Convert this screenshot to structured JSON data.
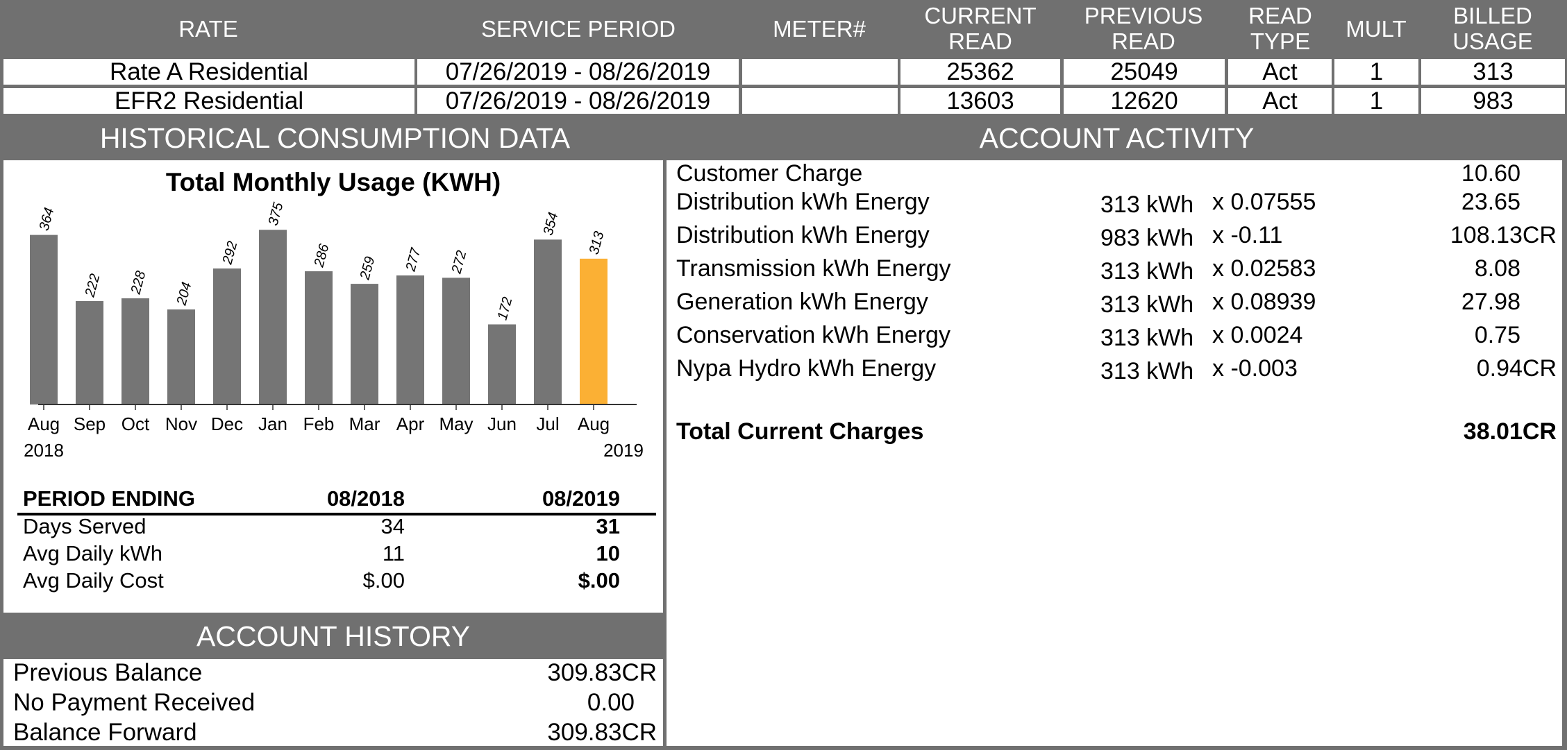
{
  "rate_table": {
    "headers": {
      "rate": "RATE",
      "service_period": "SERVICE PERIOD",
      "meter": "METER#",
      "current_read": [
        "CURRENT",
        "READ"
      ],
      "previous_read": [
        "PREVIOUS",
        "READ"
      ],
      "read_type": [
        "READ",
        "TYPE"
      ],
      "mult": "MULT",
      "billed_usage": [
        "BILLED",
        "USAGE"
      ]
    },
    "rows": [
      {
        "rate": "Rate A Residential",
        "service_period": "07/26/2019 - 08/26/2019",
        "meter": "",
        "current_read": "25362",
        "previous_read": "25049",
        "read_type": "Act",
        "mult": "1",
        "billed_usage": "313"
      },
      {
        "rate": "EFR2 Residential",
        "service_period": "07/26/2019 - 08/26/2019",
        "meter": "",
        "current_read": "13603",
        "previous_read": "12620",
        "read_type": "Act",
        "mult": "1",
        "billed_usage": "983"
      }
    ]
  },
  "historical": {
    "section_title": "HISTORICAL CONSUMPTION DATA",
    "year_start": "2018",
    "year_end": "2019",
    "period_table": {
      "header": {
        "label": "PERIOD ENDING",
        "col1": "08/2018",
        "col2": "08/2019"
      },
      "rows": [
        {
          "label": "Days Served",
          "col1": "34",
          "col2": "31"
        },
        {
          "label": "Avg Daily kWh",
          "col1": "11",
          "col2": "10"
        },
        {
          "label": "Avg Daily Cost",
          "col1": "$.00",
          "col2": "$.00"
        }
      ]
    }
  },
  "chart_data": {
    "type": "bar",
    "title": "Total Monthly Usage (KWH)",
    "categories": [
      "Aug",
      "Sep",
      "Oct",
      "Nov",
      "Dec",
      "Jan",
      "Feb",
      "Mar",
      "Apr",
      "May",
      "Jun",
      "Jul",
      "Aug"
    ],
    "values": [
      364,
      222,
      228,
      204,
      292,
      375,
      286,
      259,
      277,
      272,
      172,
      354,
      313
    ],
    "highlight_index": 12,
    "colors": {
      "bar": "#757575",
      "highlight": "#FBB034"
    },
    "ylim": [
      0,
      420
    ],
    "grid": false
  },
  "account_activity": {
    "section_title": "ACCOUNT ACTIVITY",
    "rows": [
      {
        "label": "Customer Charge",
        "qty": "",
        "rate": "",
        "amount": "10.60"
      },
      {
        "label": "Distribution kWh Energy",
        "qty": "313 kWh",
        "rate": "x 0.07555",
        "amount": "23.65"
      },
      {
        "label": "Distribution kWh Energy",
        "qty": "983 kWh",
        "rate": "x -0.11",
        "amount": "108.13CR"
      },
      {
        "label": "Transmission kWh Energy",
        "qty": "313 kWh",
        "rate": "x 0.02583",
        "amount": "8.08"
      },
      {
        "label": "Generation kWh Energy",
        "qty": "313 kWh",
        "rate": "x 0.08939",
        "amount": "27.98"
      },
      {
        "label": "Conservation kWh Energy",
        "qty": "313 kWh",
        "rate": "x 0.0024",
        "amount": "0.75"
      },
      {
        "label": "Nypa Hydro kWh Energy",
        "qty": "313 kWh",
        "rate": "x -0.003",
        "amount": "0.94CR"
      }
    ],
    "total": {
      "label": "Total Current Charges",
      "amount": "38.01CR"
    }
  },
  "account_history": {
    "section_title": "ACCOUNT HISTORY",
    "rows": [
      {
        "label": "Previous Balance",
        "amount": "309.83CR"
      },
      {
        "label": "No Payment Received",
        "amount": "0.00"
      },
      {
        "label": "Balance Forward",
        "amount": "309.83CR"
      }
    ]
  },
  "colors": {
    "header_gray": "#707070",
    "panel_white": "#FFFFFF",
    "accent_orange": "#FBB034"
  }
}
